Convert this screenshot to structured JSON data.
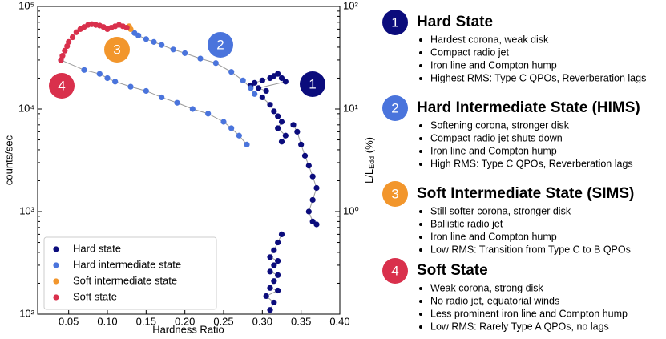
{
  "chart_data": {
    "type": "scatter",
    "xlabel": "Hardness Ratio",
    "ylabel": "counts/sec",
    "y2label": "L/L",
    "y2label_sub": "Edd",
    "y2label_suffix": " (%)",
    "xlim": [
      0.01,
      0.4
    ],
    "xticks": [
      0.05,
      {
        "value": 0.1,
        "label": "0.10"
      },
      0.15,
      {
        "value": 0.2,
        "label": "0.20"
      },
      0.25,
      {
        "value": 0.3,
        "label": "0.30"
      },
      0.35,
      {
        "value": 0.4,
        "label": "0.40"
      }
    ],
    "ylim": [
      100,
      100000
    ],
    "ylog": true,
    "yticks": [
      {
        "value": 100,
        "label": "10²"
      },
      {
        "value": 1000,
        "label": "10³"
      },
      {
        "value": 10000,
        "label": "10⁴"
      },
      {
        "value": 100000,
        "label": "10⁵"
      }
    ],
    "y2lim": [
      0.1,
      100
    ],
    "y2log": true,
    "y2ticks": [
      {
        "value": 1,
        "label": "10⁰"
      },
      {
        "value": 10,
        "label": "10¹"
      },
      {
        "value": 100,
        "label": "10²"
      }
    ],
    "track_color": "#999999",
    "legend": "lower left",
    "series": [
      {
        "name": "Hard state",
        "color": "#0b0c7c",
        "x": [
          0.31,
          0.315,
          0.305,
          0.32,
          0.31,
          0.315,
          0.32,
          0.31,
          0.315,
          0.32,
          0.31,
          0.315,
          0.32,
          0.325,
          null,
          0.285,
          0.29,
          0.3,
          0.31,
          0.315,
          0.32,
          0.325,
          0.33,
          0.295,
          0.305,
          null,
          0.3,
          0.31,
          0.315,
          0.32,
          0.325,
          0.32,
          0.33,
          0.325,
          null,
          0.34,
          0.345,
          0.35,
          0.355,
          0.36,
          0.365,
          0.37,
          0.365,
          0.36,
          0.365,
          0.37
        ],
        "values": [
          110,
          130,
          150,
          170,
          180,
          210,
          240,
          260,
          300,
          330,
          360,
          420,
          500,
          600,
          null,
          17000,
          18000,
          19000,
          20000,
          21000,
          22000,
          20000,
          18500,
          16000,
          15000,
          null,
          13000,
          11000,
          9500,
          8500,
          7500,
          6500,
          5500,
          4800,
          null,
          7000,
          6000,
          4500,
          3500,
          2800,
          2200,
          1700,
          1300,
          1000,
          800,
          750
        ]
      },
      {
        "name": "Hard intermediate state",
        "color": "#4a74dc",
        "x": [
          0.135,
          0.14,
          0.15,
          0.16,
          0.17,
          0.185,
          0.2,
          0.22,
          0.24,
          0.26,
          0.275,
          0.285,
          0.29,
          null,
          0.04,
          0.07,
          0.09,
          0.1,
          0.11,
          0.13,
          0.15,
          0.17,
          0.19,
          0.21,
          0.23,
          0.25,
          0.26,
          0.27,
          0.28
        ],
        "values": [
          55000,
          52000,
          48000,
          45000,
          42000,
          38000,
          35000,
          31000,
          28000,
          23000,
          19000,
          16000,
          14000,
          null,
          30000,
          24000,
          22000,
          20000,
          18500,
          16500,
          15000,
          13000,
          11500,
          10000,
          9000,
          7500,
          6500,
          5500,
          4500
        ]
      },
      {
        "name": "Soft intermediate state",
        "color": "#f2962c",
        "x": [
          0.125,
          0.128,
          0.13
        ],
        "values": [
          62000,
          64000,
          60000
        ]
      },
      {
        "name": "Soft state",
        "color": "#d9304c",
        "x": [
          0.04,
          0.042,
          0.045,
          0.048,
          0.05,
          0.055,
          0.06,
          0.065,
          0.07,
          0.075,
          0.08,
          0.085,
          0.09,
          0.095,
          0.1,
          0.105,
          0.11,
          0.115,
          0.12,
          0.125
        ],
        "values": [
          30000,
          33000,
          37000,
          41000,
          45000,
          50000,
          56000,
          60000,
          63000,
          66000,
          67000,
          66000,
          65000,
          63000,
          60000,
          62000,
          64000,
          66000,
          64000,
          62000
        ]
      }
    ],
    "annotations": [
      {
        "text": "1",
        "color": "#0b0c7c"
      },
      {
        "text": "2",
        "color": "#4a74dc"
      },
      {
        "text": "3",
        "color": "#f2962c"
      },
      {
        "text": "4",
        "color": "#d9304c"
      }
    ]
  },
  "panel": {
    "sections": [
      {
        "number": "1",
        "color": "#0b0c7c",
        "title": "Hard State",
        "bullets": [
          "Hardest corona, weak disk",
          "Compact radio jet",
          "Iron line and Compton hump",
          "Highest RMS: Type C QPOs, Reverberation lags"
        ]
      },
      {
        "number": "2",
        "color": "#4a74dc",
        "title": "Hard Intermediate State (HIMS)",
        "bullets": [
          "Softening corona, stronger disk",
          "Compact radio jet shuts down",
          "Iron line and Compton hump",
          "High RMS: Type C QPOs, Reverberation lags"
        ]
      },
      {
        "number": "3",
        "color": "#f2962c",
        "title": "Soft Intermediate State (SIMS)",
        "bullets": [
          "Still softer corona, stronger disk",
          "Ballistic radio jet",
          "Iron line and Compton hump",
          "Low RMS: Transition from Type C to B QPOs"
        ]
      },
      {
        "number": "4",
        "color": "#d9304c",
        "title": "Soft State",
        "bullets": [
          "Weak corona, strong disk",
          "No radio jet, equatorial winds",
          "Less prominent iron line and Compton hump",
          "Low RMS: Rarely Type A QPOs, no lags"
        ]
      }
    ]
  }
}
